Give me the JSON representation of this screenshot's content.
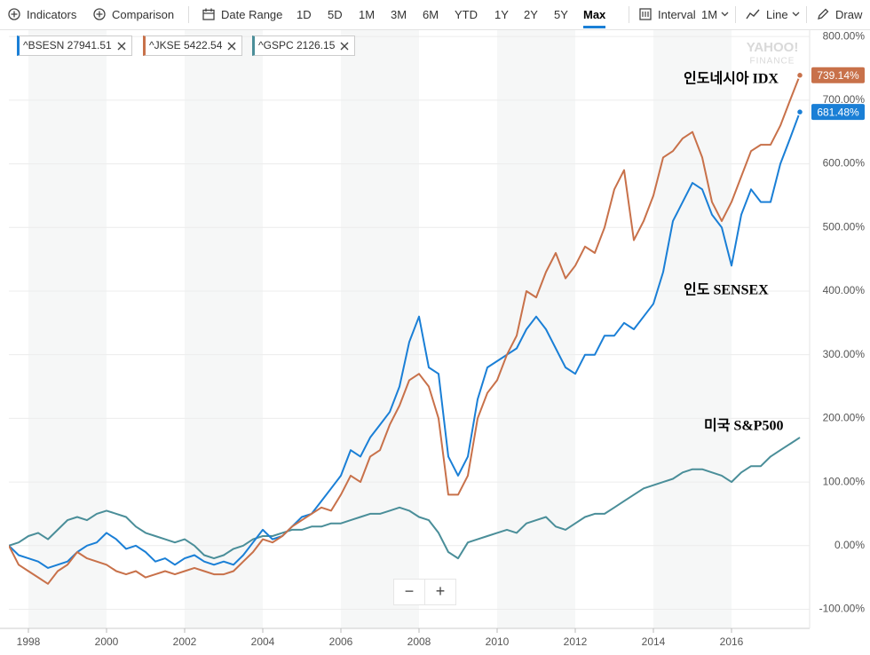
{
  "toolbar": {
    "indicators": "Indicators",
    "comparison": "Comparison",
    "date_range": "Date Range",
    "ranges": [
      "1D",
      "5D",
      "1M",
      "3M",
      "6M",
      "YTD",
      "1Y",
      "2Y",
      "5Y",
      "Max"
    ],
    "active_range": "Max",
    "interval": "Interval",
    "interval_value": "1M",
    "chart_style": "Line",
    "draw": "Draw"
  },
  "watermark": [
    "YAHOO!",
    "FINANCE"
  ],
  "zoom": [
    "−",
    "+"
  ],
  "chart_data": {
    "type": "line",
    "x": [
      1997.5,
      1997.75,
      1998,
      1998.25,
      1998.5,
      1998.75,
      1999,
      1999.25,
      1999.5,
      1999.75,
      2000,
      2000.25,
      2000.5,
      2000.75,
      2001,
      2001.25,
      2001.5,
      2001.75,
      2002,
      2002.25,
      2002.5,
      2002.75,
      2003,
      2003.25,
      2003.5,
      2003.75,
      2004,
      2004.25,
      2004.5,
      2004.75,
      2005,
      2005.25,
      2005.5,
      2005.75,
      2006,
      2006.25,
      2006.5,
      2006.75,
      2007,
      2007.25,
      2007.5,
      2007.75,
      2008,
      2008.25,
      2008.5,
      2008.75,
      2009,
      2009.25,
      2009.5,
      2009.75,
      2010,
      2010.25,
      2010.5,
      2010.75,
      2011,
      2011.25,
      2011.5,
      2011.75,
      2012,
      2012.25,
      2012.5,
      2012.75,
      2013,
      2013.25,
      2013.5,
      2013.75,
      2014,
      2014.25,
      2014.5,
      2014.75,
      2015,
      2015.25,
      2015.5,
      2015.75,
      2016,
      2016.25,
      2016.5,
      2016.75,
      2017,
      2017.25,
      2017.5,
      2017.75
    ],
    "series": [
      {
        "name": "^BSESN",
        "quote": 27941.51,
        "color": "#1a7fd6",
        "end_label": "681.48%",
        "values": [
          0,
          -15,
          -20,
          -25,
          -35,
          -30,
          -25,
          -10,
          0,
          5,
          20,
          10,
          -5,
          0,
          -10,
          -25,
          -20,
          -30,
          -20,
          -15,
          -25,
          -30,
          -25,
          -30,
          -15,
          5,
          25,
          10,
          15,
          30,
          45,
          50,
          70,
          90,
          110,
          150,
          140,
          170,
          190,
          210,
          250,
          320,
          360,
          280,
          270,
          140,
          110,
          140,
          230,
          280,
          290,
          300,
          310,
          340,
          360,
          340,
          310,
          280,
          270,
          300,
          300,
          330,
          330,
          350,
          340,
          360,
          380,
          430,
          510,
          540,
          570,
          560,
          520,
          500,
          440,
          520,
          560,
          540,
          540,
          600,
          640,
          681.48
        ]
      },
      {
        "name": "^JKSE",
        "quote": 5422.54,
        "color": "#c8714a",
        "end_label": "739.14%",
        "values": [
          0,
          -30,
          -40,
          -50,
          -60,
          -40,
          -30,
          -10,
          -20,
          -25,
          -30,
          -40,
          -45,
          -40,
          -50,
          -45,
          -40,
          -45,
          -40,
          -35,
          -40,
          -45,
          -45,
          -40,
          -25,
          -10,
          10,
          5,
          15,
          30,
          40,
          50,
          60,
          55,
          80,
          110,
          100,
          140,
          150,
          190,
          220,
          260,
          270,
          250,
          200,
          80,
          80,
          110,
          200,
          240,
          260,
          300,
          330,
          400,
          390,
          430,
          460,
          420,
          440,
          470,
          460,
          500,
          560,
          590,
          480,
          510,
          550,
          610,
          620,
          640,
          650,
          610,
          540,
          510,
          540,
          580,
          620,
          630,
          630,
          660,
          700,
          739.14
        ]
      },
      {
        "name": "^GSPC",
        "quote": 2126.15,
        "color": "#4a8e99",
        "values": [
          0,
          5,
          15,
          20,
          10,
          25,
          40,
          45,
          40,
          50,
          55,
          50,
          45,
          30,
          20,
          15,
          10,
          5,
          10,
          0,
          -15,
          -20,
          -15,
          -5,
          0,
          10,
          15,
          15,
          20,
          25,
          25,
          30,
          30,
          35,
          35,
          40,
          45,
          50,
          50,
          55,
          60,
          55,
          45,
          40,
          20,
          -10,
          -20,
          5,
          10,
          15,
          20,
          25,
          20,
          35,
          40,
          45,
          30,
          25,
          35,
          45,
          50,
          50,
          60,
          70,
          80,
          90,
          95,
          100,
          105,
          115,
          120,
          120,
          115,
          110,
          100,
          115,
          125,
          125,
          140,
          150,
          160,
          170
        ]
      }
    ],
    "annotations": [
      "인도네시아 IDX",
      "인도 SENSEX",
      "미국 S&P500"
    ],
    "xlim": [
      1997.5,
      2018.0
    ],
    "xticks": [
      1998,
      2000,
      2002,
      2004,
      2006,
      2008,
      2010,
      2012,
      2014,
      2016
    ],
    "ylim": [
      -130,
      810
    ],
    "yticks": [
      {
        "value": -100,
        "label": "-100.00%"
      },
      {
        "value": 0,
        "label": "0.00%"
      },
      {
        "value": 100,
        "label": "100.00%"
      },
      {
        "value": 200,
        "label": "200.00%"
      },
      {
        "value": 300,
        "label": "300.00%"
      },
      {
        "value": 400,
        "label": "400.00%"
      },
      {
        "value": 500,
        "label": "500.00%"
      },
      {
        "value": 600,
        "label": "600.00%"
      },
      {
        "value": 700,
        "label": "700.00%"
      },
      {
        "value": 800,
        "label": "800.00%"
      }
    ],
    "grid": true,
    "legend": "top-left"
  }
}
